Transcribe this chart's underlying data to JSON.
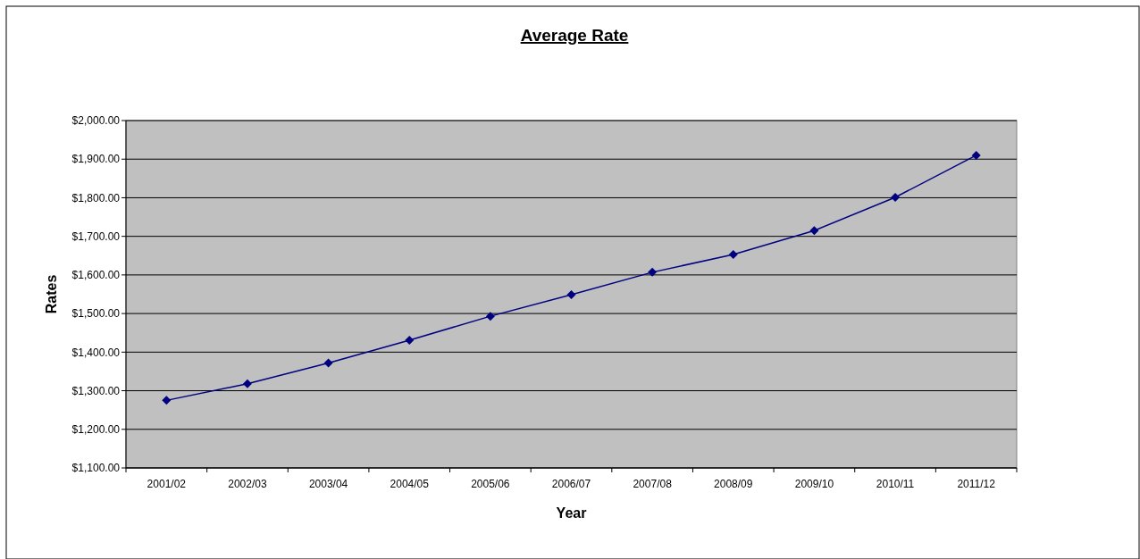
{
  "chart_data": {
    "type": "line",
    "title": "Average Rate",
    "xlabel": "Year",
    "ylabel": "Rates",
    "categories": [
      "2001/02",
      "2002/03",
      "2003/04",
      "2004/05",
      "2005/06",
      "2006/07",
      "2007/08",
      "2008/09",
      "2009/10",
      "2010/11",
      "2011/12"
    ],
    "series": [
      {
        "color": "#000080",
        "values": [
          1275,
          1318,
          1372,
          1431,
          1493,
          1549,
          1607,
          1653,
          1715,
          1801,
          1910
        ]
      }
    ],
    "ylim": [
      1100,
      2000
    ],
    "yticks": [
      {
        "value": 1100,
        "label": "$1,100.00"
      },
      {
        "value": 1200,
        "label": "$1,200.00"
      },
      {
        "value": 1300,
        "label": "$1,300.00"
      },
      {
        "value": 1400,
        "label": "$1,400.00"
      },
      {
        "value": 1500,
        "label": "$1,500.00"
      },
      {
        "value": 1600,
        "label": "$1,600.00"
      },
      {
        "value": 1700,
        "label": "$1,700.00"
      },
      {
        "value": 1800,
        "label": "$1,800.00"
      },
      {
        "value": 1900,
        "label": "$1,900.00"
      },
      {
        "value": 2000,
        "label": "$2,000.00"
      }
    ],
    "grid": "y",
    "marker": "diamond",
    "line_style": "solid"
  }
}
